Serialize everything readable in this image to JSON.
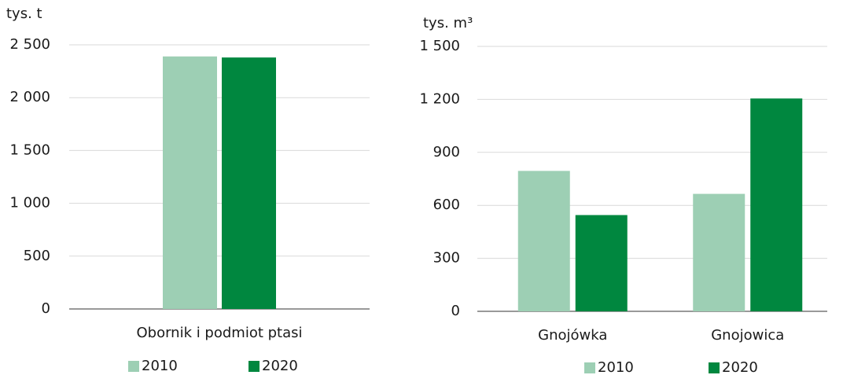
{
  "chart_data": [
    {
      "type": "bar",
      "y_label": "tys. t",
      "categories": [
        "Obornik i podmiot ptasi"
      ],
      "series": [
        {
          "name": "2010",
          "color": "#9dcfb4",
          "values": [
            2390
          ]
        },
        {
          "name": "2020",
          "color": "#00873f",
          "values": [
            2380
          ]
        }
      ],
      "ylim": [
        0,
        2500
      ],
      "yticks": [
        0,
        500,
        {
          "value": 1000,
          "label": "1 000"
        },
        {
          "value": 1500,
          "label": "1 500"
        },
        {
          "value": 2000,
          "label": "2 000"
        },
        {
          "value": 2500,
          "label": "2 500"
        }
      ],
      "grid": true
    },
    {
      "type": "bar",
      "y_label": "tys. m³",
      "categories": [
        "Gnojówka",
        "Gnojowica"
      ],
      "series": [
        {
          "name": "2010",
          "color": "#9dcfb4",
          "values": [
            795,
            665
          ]
        },
        {
          "name": "2020",
          "color": "#00873f",
          "values": [
            545,
            1205
          ]
        }
      ],
      "ylim": [
        0,
        1500
      ],
      "yticks": [
        0,
        300,
        600,
        900,
        {
          "value": 1200,
          "label": "1 200"
        },
        {
          "value": 1500,
          "label": "1 500"
        }
      ],
      "grid": true
    }
  ]
}
